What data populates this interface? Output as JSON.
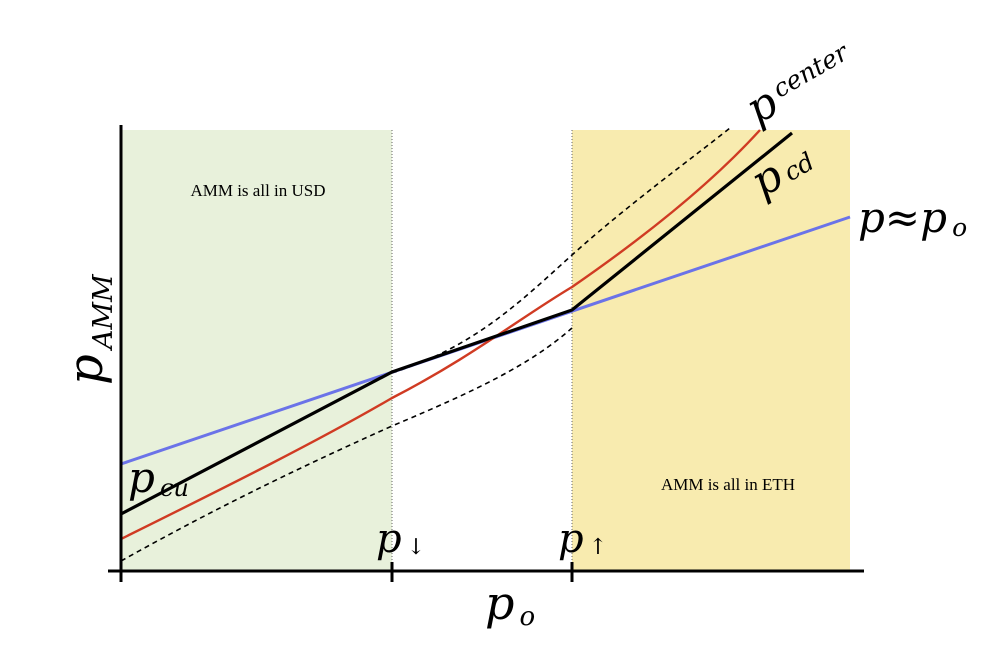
{
  "colors": {
    "background": "#ffffff",
    "usd_region": "#e8f1db",
    "eth_region": "#f8ebaf",
    "p_center": "#d03b23",
    "p_approx": "#6b73e8",
    "p_amm": "#000000",
    "band": "#000000",
    "guide": "#666666"
  },
  "chart_data": {
    "type": "line",
    "title": "",
    "axis_labels": {
      "x_main": "p",
      "x_sub": "o",
      "y_main": "p",
      "y_sub": "AMM"
    },
    "x_ticks": [
      {
        "main": "p",
        "arrow": "↓"
      },
      {
        "main": "p",
        "arrow": "↑"
      }
    ],
    "regions": [
      {
        "label": "AMM is all in USD"
      },
      {
        "label": "AMM is all in ETH"
      }
    ],
    "series_labels": {
      "p_center": {
        "main": "p",
        "sub": "center"
      },
      "p_cd": {
        "main": "p",
        "sub": "cd"
      },
      "p_cu": {
        "main": "p",
        "sub": "cu"
      },
      "p_approx": {
        "main": "p≈p",
        "sub": "o"
      }
    },
    "legend": "none",
    "grid": false
  }
}
